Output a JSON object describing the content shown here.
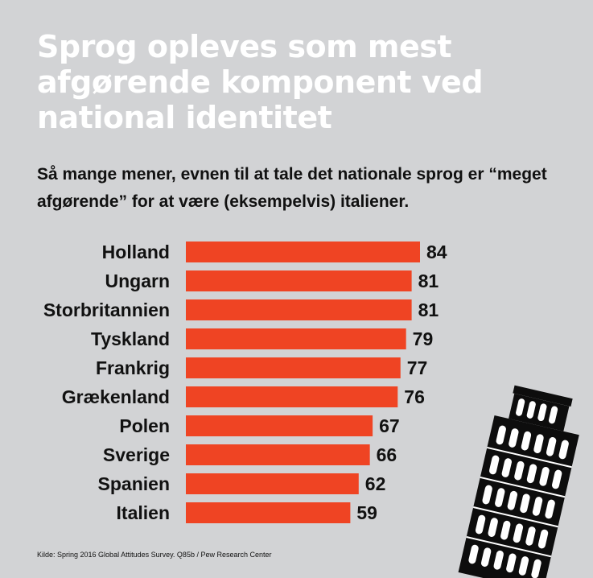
{
  "title": "Sprog opleves som mest afgørende komponent ved national identitet",
  "subtitle": "Så mange mener, evnen til at tale det nationale sprog er “meget afgørende” for at være (eksempelvis) italiener.",
  "source": "Kilde: Spring 2016 Global Attitudes Survey. Q85b / Pew Research Center",
  "colors": {
    "background": "#d2d3d5",
    "bar": "#ef4423",
    "text": "#111111",
    "title": "#ffffff"
  },
  "illustration": "leaning-tower-of-pisa-icon",
  "chart_data": {
    "type": "bar",
    "orientation": "horizontal",
    "categories": [
      "Holland",
      "Ungarn",
      "Storbritannien",
      "Tyskland",
      "Frankrig",
      "Grækenland",
      "Polen",
      "Sverige",
      "Spanien",
      "Italien"
    ],
    "values": [
      84,
      81,
      81,
      79,
      77,
      76,
      67,
      66,
      62,
      59
    ],
    "xlim": [
      0,
      84
    ],
    "grid": false,
    "legend": "none"
  }
}
